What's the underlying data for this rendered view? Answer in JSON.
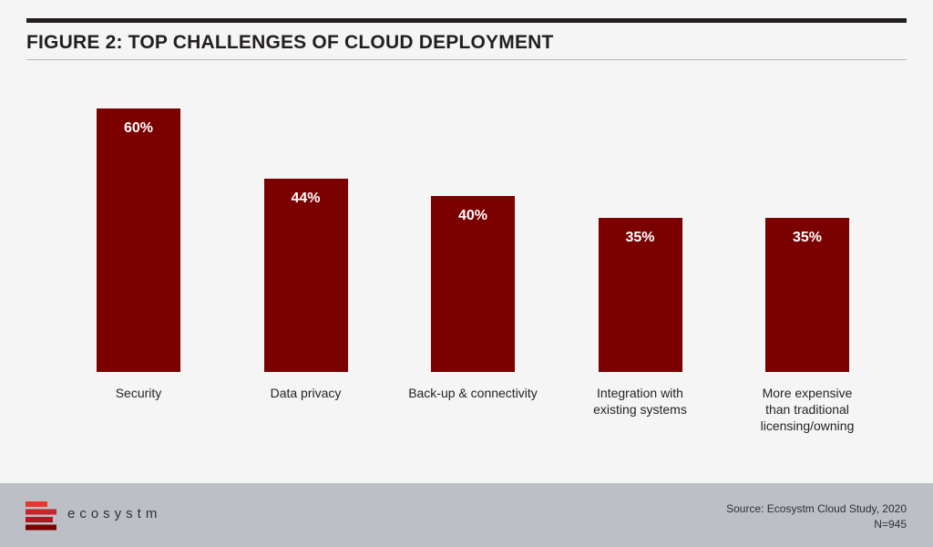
{
  "header": {
    "title": "FIGURE 2: TOP CHALLENGES OF CLOUD DEPLOYMENT"
  },
  "colors": {
    "bar": "#7b0000",
    "bar_label": "#ffffff",
    "title": "#231f20",
    "footer_bg": "#bcc0c6"
  },
  "chart_data": {
    "type": "bar",
    "title": "FIGURE 2: TOP CHALLENGES OF CLOUD DEPLOYMENT",
    "categories": [
      [
        "Security"
      ],
      [
        "Data privacy"
      ],
      [
        "Back-up & connectivity"
      ],
      [
        "Integration with",
        "existing systems"
      ],
      [
        "More expensive",
        "than traditional",
        "licensing/owning"
      ]
    ],
    "values": [
      60,
      44,
      40,
      35,
      35
    ],
    "data_labels": [
      "60%",
      "44%",
      "40%",
      "35%",
      "35%"
    ],
    "unit": "%",
    "ylim": [
      0,
      60
    ],
    "grid": false,
    "legend": "none"
  },
  "footer": {
    "brand": "ecosystm",
    "logo_icon": "ecosystm-logo-icon",
    "source": "Source: Ecosystm Cloud Study, 2020",
    "n": "N=945"
  }
}
